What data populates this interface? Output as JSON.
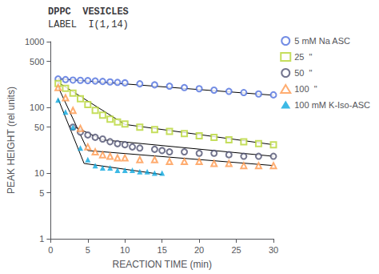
{
  "chart_data": {
    "type": "scatter",
    "title": "DPPC  VESICLES",
    "subtitle": "LABEL  I(1,14)",
    "xlabel": "REACTION TIME (min)",
    "ylabel": "PEAK HEIGHT (rel units)",
    "xlim": [
      0,
      30
    ],
    "ylim": [
      1,
      1000
    ],
    "xticks": [
      0,
      5,
      10,
      15,
      20,
      25,
      30
    ],
    "yticks": [
      1,
      5,
      10,
      50,
      100,
      500,
      1000
    ],
    "log": "y",
    "grid": false,
    "legend": "upper right",
    "series": [
      {
        "name": "5 mM Na ASC",
        "marker": "open_circle",
        "x": [
          1,
          2,
          3,
          4,
          5,
          6,
          7,
          8,
          9,
          10,
          12,
          14,
          16,
          18,
          20,
          22,
          24,
          26,
          28,
          30
        ],
        "values": [
          270,
          265,
          260,
          258,
          255,
          252,
          248,
          244,
          240,
          236,
          228,
          220,
          210,
          200,
          192,
          183,
          175,
          168,
          160,
          155
        ],
        "fit": {
          "x": [
            1,
            30
          ],
          "values": [
            272,
            153
          ]
        }
      },
      {
        "name": "25  \"",
        "marker": "open_square",
        "x": [
          1,
          2,
          3,
          4,
          5,
          6,
          7,
          8,
          9,
          10,
          12,
          14,
          16,
          18,
          20,
          22,
          24,
          26,
          28,
          30
        ],
        "values": [
          230,
          195,
          165,
          135,
          110,
          90,
          76,
          66,
          60,
          56,
          50,
          46,
          43,
          40,
          37,
          35,
          32,
          30,
          28,
          27
        ],
        "fit": {
          "x": [
            1,
            10,
            30
          ],
          "values": [
            240,
            55,
            27
          ]
        }
      },
      {
        "name": "50  \"",
        "marker": "open_circle",
        "x": [
          3,
          4,
          5,
          6,
          7,
          8,
          9,
          10,
          11,
          12,
          14,
          15,
          16,
          18,
          20,
          22,
          24,
          26,
          28,
          30
        ],
        "values": [
          50,
          42,
          38,
          35,
          33,
          30,
          28,
          27,
          25,
          24,
          23,
          22,
          21,
          21,
          20,
          20,
          19,
          18,
          18,
          18
        ],
        "fit": {
          "x": [
            3,
            7,
            30
          ],
          "values": [
            52,
            32,
            18
          ]
        }
      },
      {
        "name": "100  \"",
        "marker": "open_triangle",
        "x": [
          1,
          2,
          3,
          4,
          5,
          6,
          7,
          8,
          9,
          10,
          12,
          14,
          16,
          18,
          20,
          22,
          24,
          26,
          28,
          30
        ],
        "values": [
          200,
          140,
          90,
          48,
          25,
          21,
          19,
          18,
          17,
          17,
          16,
          16,
          15,
          15,
          15,
          14,
          14,
          13,
          13,
          13
        ],
        "fit": {
          "x": [
            1,
            5,
            30
          ],
          "values": [
            205,
            22,
            13
          ]
        }
      },
      {
        "name": "100 mM K-Iso-ASC",
        "marker": "filled_triangle",
        "x": [
          1,
          2,
          3,
          4,
          5,
          6,
          7,
          8,
          9,
          10,
          11,
          12,
          13,
          14,
          15
        ],
        "values": [
          130,
          85,
          50,
          24,
          16,
          13,
          12,
          12,
          11,
          11,
          11,
          10.5,
          10.5,
          10,
          10
        ],
        "fit": {
          "x": [
            1,
            4.5,
            15
          ],
          "values": [
            135,
            14,
            9.5
          ]
        }
      }
    ]
  }
}
